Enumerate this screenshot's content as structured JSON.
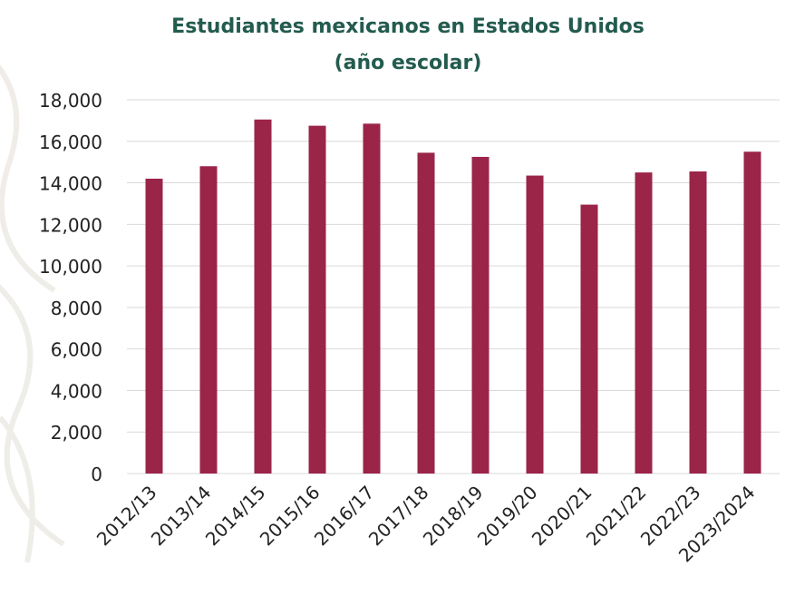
{
  "colors": {
    "bar": "#9b2449",
    "title": "#235b4e",
    "grid": "#d9d9d9",
    "text": "#222222"
  },
  "chart_data": {
    "type": "bar",
    "title": "Estudiantes mexicanos en Estados Unidos",
    "subtitle": "(año escolar)",
    "xlabel": "",
    "ylabel": "",
    "categories": [
      "2012/13",
      "2013/14",
      "2014/15",
      "2015/16",
      "2016/17",
      "2017/18",
      "2018/19",
      "2019/20",
      "2020/21",
      "2021/22",
      "2022/23",
      "2023/2024"
    ],
    "values": [
      14200,
      14800,
      17050,
      16750,
      16850,
      15450,
      15250,
      14350,
      12950,
      14500,
      14550,
      15500
    ],
    "ylim": [
      0,
      18000
    ],
    "yticks": [
      "0",
      "2,000",
      "4,000",
      "6,000",
      "8,000",
      "10,000",
      "12,000",
      "14,000",
      "16,000",
      "18,000"
    ],
    "ytick_values": [
      0,
      2000,
      4000,
      6000,
      8000,
      10000,
      12000,
      14000,
      16000,
      18000
    ],
    "grid": true,
    "legend": "none"
  }
}
